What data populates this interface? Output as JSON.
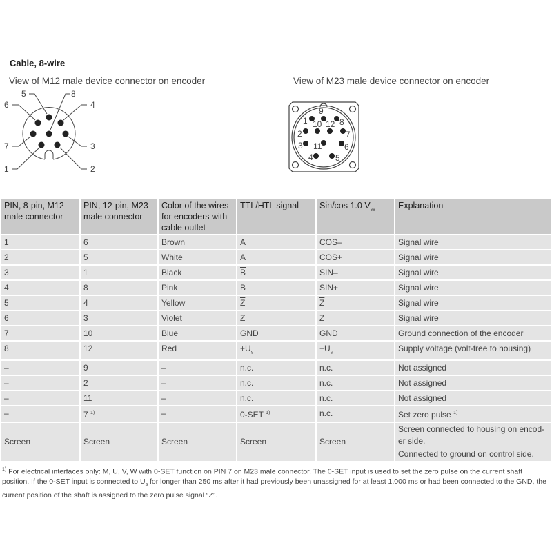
{
  "title": "Cable, 8-wire",
  "m12": {
    "caption": "View of M12 male device connector on encoder",
    "pins": [
      "1",
      "2",
      "3",
      "4",
      "5",
      "6",
      "7",
      "8"
    ]
  },
  "m23": {
    "caption": "View of M23 male device connector on encoder",
    "pins": [
      "1",
      "2",
      "3",
      "4",
      "5",
      "6",
      "7",
      "8",
      "9",
      "10",
      "11",
      "12"
    ]
  },
  "table": {
    "headers": [
      "PIN, 8-pin, M12 male connector",
      "PIN, 12-pin, M23 male connector",
      "Color of the wires for encoders with cable outlet",
      "TTL/HTL signal",
      "Sin/cos 1.0 V",
      "Explanation"
    ],
    "header_sub": "ss",
    "rows": [
      [
        {
          "t": "1"
        },
        {
          "t": "6"
        },
        {
          "t": "Brown"
        },
        {
          "t": "A",
          "ol": true
        },
        {
          "t": "COS–"
        },
        {
          "t": "Signal wire"
        }
      ],
      [
        {
          "t": "2"
        },
        {
          "t": "5"
        },
        {
          "t": "White"
        },
        {
          "t": "A"
        },
        {
          "t": "COS+"
        },
        {
          "t": "Signal wire"
        }
      ],
      [
        {
          "t": "3"
        },
        {
          "t": "1"
        },
        {
          "t": "Black"
        },
        {
          "t": "B",
          "ol": true
        },
        {
          "t": "SIN–"
        },
        {
          "t": "Signal wire"
        }
      ],
      [
        {
          "t": "4"
        },
        {
          "t": "8"
        },
        {
          "t": "Pink"
        },
        {
          "t": "B"
        },
        {
          "t": "SIN+"
        },
        {
          "t": "Signal wire"
        }
      ],
      [
        {
          "t": "5"
        },
        {
          "t": "4"
        },
        {
          "t": "Yellow"
        },
        {
          "t": "Z",
          "ol": true
        },
        {
          "t": "Z",
          "ol": true
        },
        {
          "t": "Signal wire"
        }
      ],
      [
        {
          "t": "6"
        },
        {
          "t": "3"
        },
        {
          "t": "Violet"
        },
        {
          "t": "Z"
        },
        {
          "t": "Z"
        },
        {
          "t": "Signal wire"
        }
      ],
      [
        {
          "t": "7"
        },
        {
          "t": "10"
        },
        {
          "t": "Blue"
        },
        {
          "t": "GND"
        },
        {
          "t": "GND"
        },
        {
          "t": "Ground connection of the encoder"
        }
      ],
      [
        {
          "t": "8"
        },
        {
          "t": "12"
        },
        {
          "t": "Red"
        },
        {
          "t": "+U",
          "sub": "s"
        },
        {
          "t": "+U",
          "sub": "s"
        },
        {
          "t": "Supply voltage (volt-free to housing)"
        }
      ],
      [
        {
          "t": "–"
        },
        {
          "t": "9"
        },
        {
          "t": "–"
        },
        {
          "t": "n.c."
        },
        {
          "t": "n.c."
        },
        {
          "t": "Not assigned"
        }
      ],
      [
        {
          "t": "–"
        },
        {
          "t": "2"
        },
        {
          "t": "–"
        },
        {
          "t": "n.c."
        },
        {
          "t": "n.c."
        },
        {
          "t": "Not assigned"
        }
      ],
      [
        {
          "t": "–"
        },
        {
          "t": "11"
        },
        {
          "t": "–"
        },
        {
          "t": "n.c."
        },
        {
          "t": "n.c."
        },
        {
          "t": "Not assigned"
        }
      ],
      [
        {
          "t": "–"
        },
        {
          "t": "7",
          "sup": "1)"
        },
        {
          "t": "–"
        },
        {
          "t": "0-SET",
          "sup": "1)"
        },
        {
          "t": "n.c."
        },
        {
          "t": "Set zero pulse",
          "sup": "1)"
        }
      ],
      [
        {
          "t": "Screen"
        },
        {
          "t": "Screen"
        },
        {
          "t": "Screen"
        },
        {
          "t": "Screen"
        },
        {
          "t": "Screen"
        },
        {
          "t": "Screen connected to housing on encod-er side.",
          "t2": "Connected to ground on control side."
        }
      ]
    ]
  },
  "footnote": {
    "mark": "1)",
    "text_a": "For electrical interfaces only: M, U, V, W with 0-SET function on PIN 7 on M23 male connector. The 0-SET input is used to set the zero pulse on the current shaft position. If the 0-SET input is connected to U",
    "sub": "s",
    "text_b": " for longer than 250 ms after it had previously been unassigned for at least 1,000 ms or had been connected to the GND, the current position of the shaft is assigned to the zero pulse signal “Z”."
  }
}
